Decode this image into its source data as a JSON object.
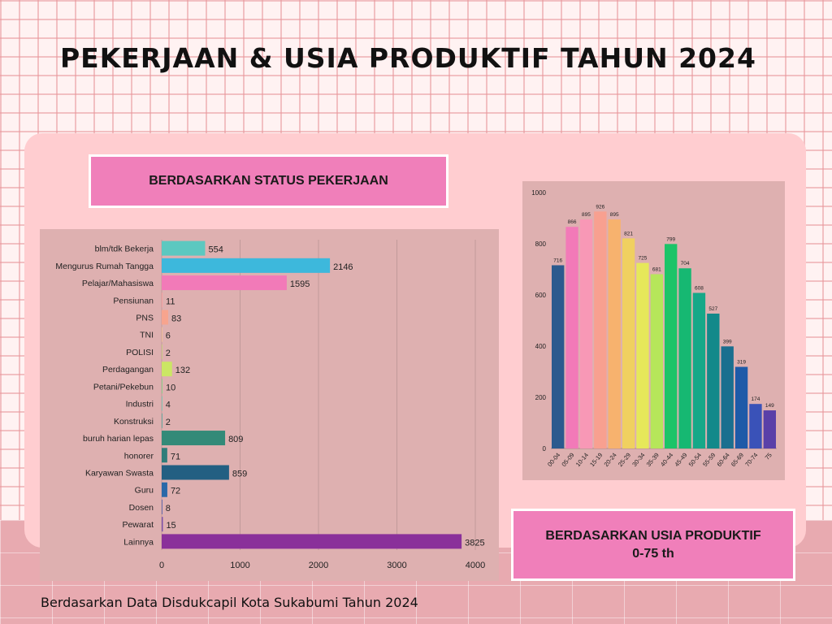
{
  "title": "PEKERJAAN & USIA PRODUKTIF TAHUN 2024",
  "section_labels": {
    "status": "BERDASARKAN STATUS PEKERJAAN",
    "usia_line1": "BERDASARKAN USIA PRODUKTIF",
    "usia_line2": "0-75 th"
  },
  "footer": "Berdasarkan Data Disdukcapil Kota Sukabumi Tahun 2024",
  "chart_data": [
    {
      "type": "bar",
      "orientation": "horizontal",
      "title": "",
      "xlabel": "",
      "ylabel": "",
      "xlim": [
        0,
        4000
      ],
      "ticks": [
        0,
        1000,
        2000,
        3000,
        4000
      ],
      "grid": true,
      "categories": [
        "blm/tdk Bekerja",
        "Mengurus Rumah Tangga",
        "Pelajar/Mahasiswa",
        "Pensiunan",
        "PNS",
        "TNI",
        "POLISI",
        "Perdagangan",
        "Petani/Pekebun",
        "Industri",
        "Konstruksi",
        "buruh harian lepas",
        "honorer",
        "Karyawan Swasta",
        "Guru",
        "Dosen",
        "Pewarat",
        "Lainnya"
      ],
      "values": [
        554,
        2146,
        1595,
        11,
        83,
        6,
        2,
        132,
        10,
        4,
        2,
        809,
        71,
        859,
        72,
        8,
        15,
        3825
      ],
      "colors": [
        "#5cc8c0",
        "#3db8dc",
        "#f27ab8",
        "#f3a0a0",
        "#f7a48e",
        "#f2c090",
        "#c2d07a",
        "#cbe664",
        "#8ecf8a",
        "#6fc9b3",
        "#4fa89c",
        "#338a78",
        "#2f7d7a",
        "#235f82",
        "#2a68a8",
        "#4a5cae",
        "#7a4ea8",
        "#8a309a"
      ]
    },
    {
      "type": "bar",
      "orientation": "vertical",
      "title": "",
      "xlabel": "",
      "ylabel": "",
      "ylim": [
        0,
        1000
      ],
      "ticks": [
        0,
        200,
        400,
        600,
        800,
        1000
      ],
      "grid": false,
      "categories": [
        "00-04",
        "05-09",
        "10-14",
        "15-19",
        "20-24",
        "25-29",
        "30-34",
        "35-39",
        "40-44",
        "45-49",
        "50-54",
        "55-59",
        "60-64",
        "65-69",
        "70-74",
        "75"
      ],
      "values": [
        716,
        866,
        895,
        926,
        895,
        821,
        725,
        681,
        799,
        704,
        608,
        527,
        399,
        319,
        174,
        149
      ],
      "colors": [
        "#2c5a8e",
        "#f27ab8",
        "#f898b6",
        "#f8a090",
        "#f7b26e",
        "#f0d060",
        "#e6e85a",
        "#b6e65a",
        "#1cc468",
        "#16b872",
        "#16a888",
        "#13898a",
        "#1a6f8f",
        "#1e5aa8",
        "#3a52b8",
        "#5a40a8"
      ]
    }
  ]
}
